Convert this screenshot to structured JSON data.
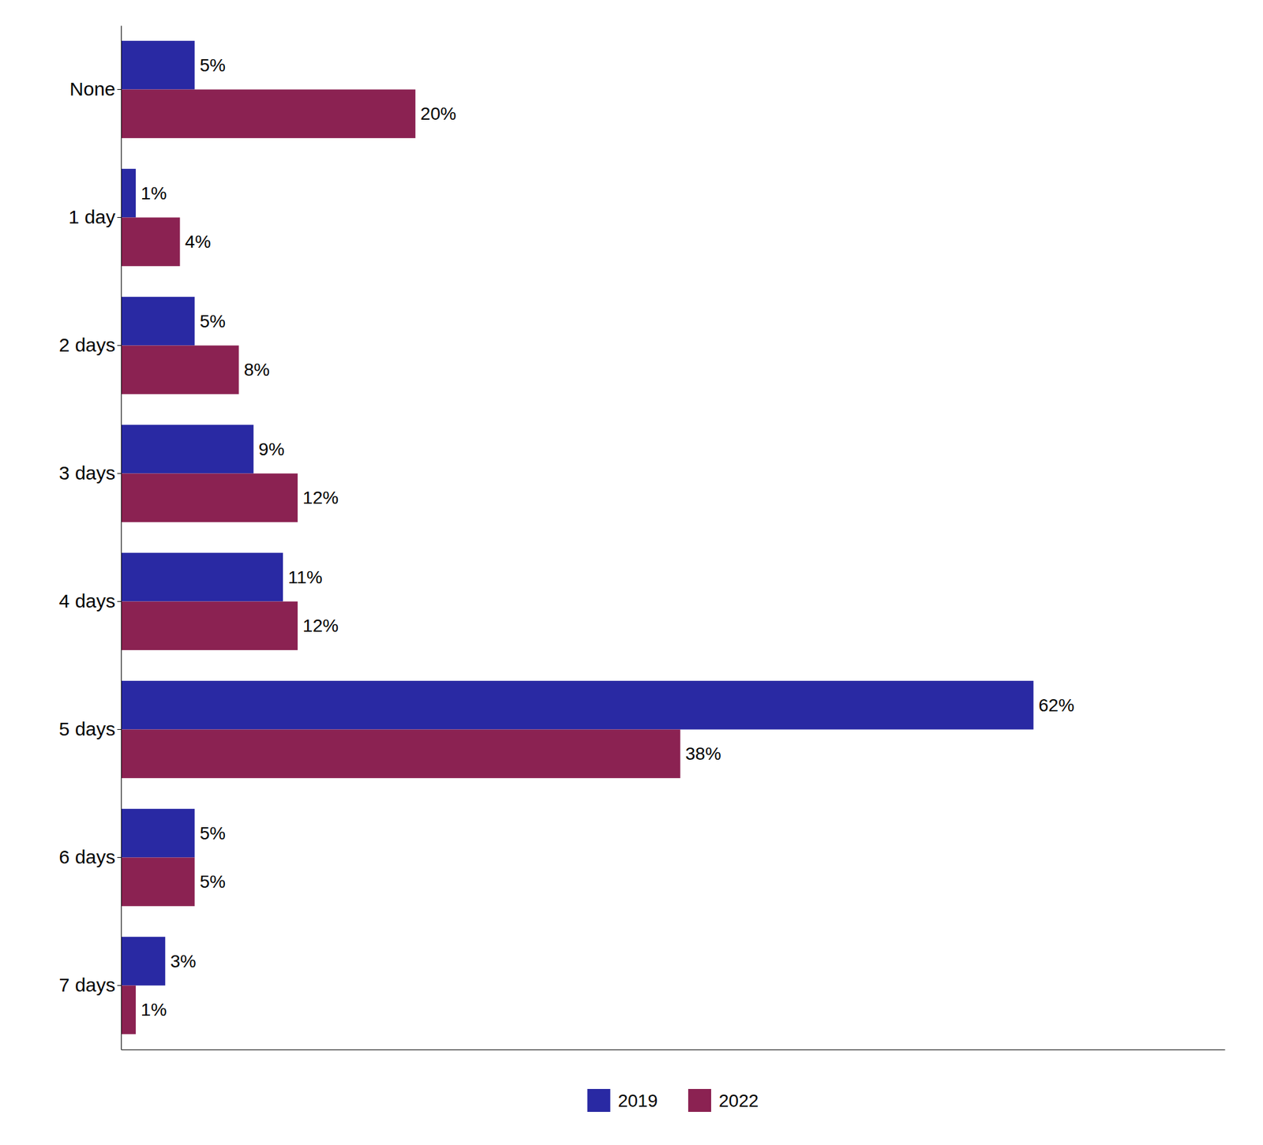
{
  "chart_data": {
    "type": "bar",
    "orientation": "horizontal",
    "categories": [
      "None",
      "1 day",
      "2 days",
      "3 days",
      "4 days",
      "5 days",
      "6 days",
      "7 days"
    ],
    "series": [
      {
        "name": "2019",
        "color": "#2929A3",
        "values": [
          5,
          1,
          5,
          9,
          11,
          62,
          5,
          3
        ],
        "value_labels": [
          "5%",
          "1%",
          "5%",
          "9%",
          "11%",
          "62%",
          "5%",
          "3%"
        ]
      },
      {
        "name": "2022",
        "color": "#8B2252",
        "values": [
          20,
          4,
          8,
          12,
          12,
          38,
          5,
          1
        ],
        "value_labels": [
          "20%",
          "4%",
          "8%",
          "12%",
          "12%",
          "38%",
          "5%",
          "1%"
        ]
      }
    ],
    "xlim": [
      0,
      75
    ],
    "xticks": [],
    "tick_labels": "y",
    "grid": false,
    "data_labels": true,
    "legend": "bottom"
  }
}
